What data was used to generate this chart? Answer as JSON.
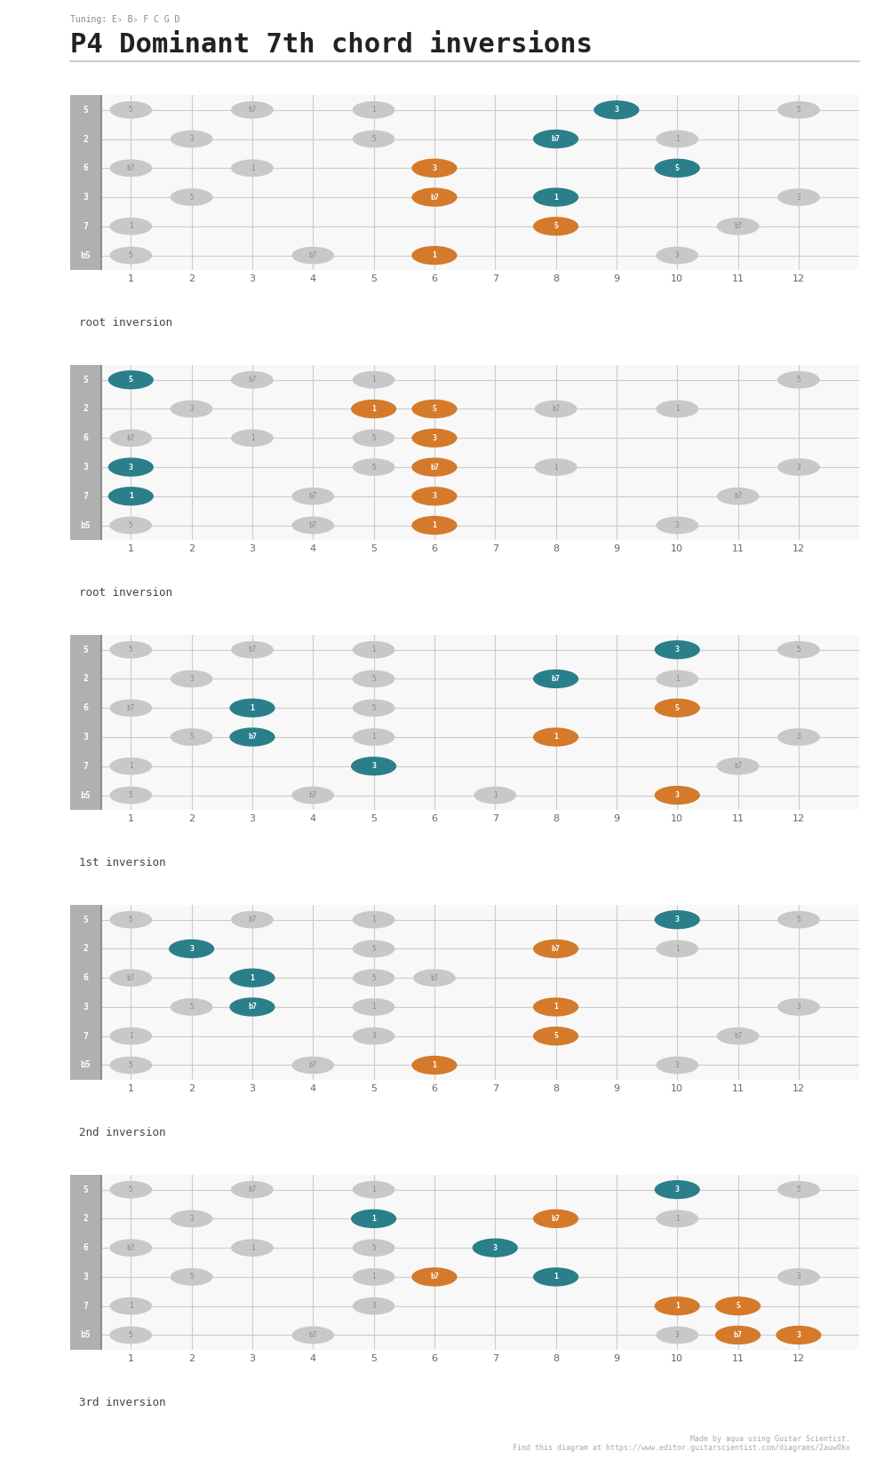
{
  "title": "P4 Dominant 7th chord inversions",
  "tuning_label": "Tuning: E♭ B♭ F C G D",
  "background_color": "#ffffff",
  "fret_color": "#cccccc",
  "string_color": "#cccccc",
  "nut_color": "#8a8a8a",
  "dot_gray": "#c8c8c8",
  "dot_teal": "#2a7f8a",
  "dot_orange": "#d47a2a",
  "dot_text_color": "#ffffff",
  "dot_gray_text": "#888888",
  "num_frets": 12,
  "num_strings": 6,
  "string_labels": [
    "5",
    "2",
    "6",
    "3",
    "7",
    "b5"
  ],
  "fret_labels": [
    "1",
    "2",
    "3",
    "4",
    "5",
    "6",
    "7",
    "8",
    "9",
    "10",
    "11",
    "12"
  ],
  "diagrams": [
    {
      "label": "root inversion",
      "highlighted": [
        {
          "string": 0,
          "fret": 9,
          "color": "teal",
          "note": "3"
        },
        {
          "string": 1,
          "fret": 8,
          "color": "teal",
          "note": "b7"
        },
        {
          "string": 2,
          "fret": 6,
          "color": "orange",
          "note": "3"
        },
        {
          "string": 2,
          "fret": 10,
          "color": "teal",
          "note": "5"
        },
        {
          "string": 3,
          "fret": 6,
          "color": "orange",
          "note": "b7"
        },
        {
          "string": 3,
          "fret": 8,
          "color": "teal",
          "note": "1"
        },
        {
          "string": 4,
          "fret": 8,
          "color": "orange",
          "note": "5"
        },
        {
          "string": 5,
          "fret": 6,
          "color": "orange",
          "note": "1"
        }
      ],
      "gray_dots": [
        {
          "string": 0,
          "fret": 1,
          "note": "5"
        },
        {
          "string": 0,
          "fret": 3,
          "note": "b7"
        },
        {
          "string": 0,
          "fret": 5,
          "note": "1"
        },
        {
          "string": 0,
          "fret": 12,
          "note": "5"
        },
        {
          "string": 1,
          "fret": 2,
          "note": "3"
        },
        {
          "string": 1,
          "fret": 5,
          "note": "5"
        },
        {
          "string": 1,
          "fret": 10,
          "note": "1"
        },
        {
          "string": 2,
          "fret": 1,
          "note": "b7"
        },
        {
          "string": 2,
          "fret": 3,
          "note": "1"
        },
        {
          "string": 3,
          "fret": 2,
          "note": "5"
        },
        {
          "string": 3,
          "fret": 12,
          "note": "3"
        },
        {
          "string": 4,
          "fret": 1,
          "note": "1"
        },
        {
          "string": 4,
          "fret": 11,
          "note": "b7"
        },
        {
          "string": 5,
          "fret": 1,
          "note": "5"
        },
        {
          "string": 5,
          "fret": 4,
          "note": "b7"
        },
        {
          "string": 5,
          "fret": 10,
          "note": "3"
        }
      ]
    },
    {
      "label": "root inversion",
      "highlighted": [
        {
          "string": 0,
          "fret": 1,
          "color": "teal",
          "note": "5"
        },
        {
          "string": 1,
          "fret": 5,
          "color": "orange",
          "note": "1"
        },
        {
          "string": 1,
          "fret": 6,
          "color": "orange",
          "note": "5"
        },
        {
          "string": 2,
          "fret": 6,
          "color": "orange",
          "note": "3"
        },
        {
          "string": 3,
          "fret": 1,
          "color": "teal",
          "note": "3"
        },
        {
          "string": 3,
          "fret": 6,
          "color": "orange",
          "note": "b7"
        },
        {
          "string": 4,
          "fret": 1,
          "color": "teal",
          "note": "1"
        },
        {
          "string": 4,
          "fret": 6,
          "color": "orange",
          "note": "3"
        },
        {
          "string": 5,
          "fret": 6,
          "color": "orange",
          "note": "1"
        }
      ],
      "gray_dots": [
        {
          "string": 0,
          "fret": 3,
          "note": "b7"
        },
        {
          "string": 0,
          "fret": 5,
          "note": "1"
        },
        {
          "string": 0,
          "fret": 12,
          "note": "5"
        },
        {
          "string": 1,
          "fret": 2,
          "note": "3"
        },
        {
          "string": 1,
          "fret": 8,
          "note": "b7"
        },
        {
          "string": 1,
          "fret": 10,
          "note": "1"
        },
        {
          "string": 2,
          "fret": 1,
          "note": "b7"
        },
        {
          "string": 2,
          "fret": 3,
          "note": "1"
        },
        {
          "string": 2,
          "fret": 5,
          "note": "5"
        },
        {
          "string": 3,
          "fret": 5,
          "note": "5"
        },
        {
          "string": 3,
          "fret": 8,
          "note": "1"
        },
        {
          "string": 3,
          "fret": 12,
          "note": "3"
        },
        {
          "string": 4,
          "fret": 4,
          "note": "b7"
        },
        {
          "string": 4,
          "fret": 11,
          "note": "b7"
        },
        {
          "string": 5,
          "fret": 1,
          "note": "5"
        },
        {
          "string": 5,
          "fret": 4,
          "note": "b7"
        },
        {
          "string": 5,
          "fret": 10,
          "note": "3"
        }
      ]
    },
    {
      "label": "1st inversion",
      "highlighted": [
        {
          "string": 0,
          "fret": 10,
          "color": "teal",
          "note": "3"
        },
        {
          "string": 1,
          "fret": 8,
          "color": "teal",
          "note": "b7"
        },
        {
          "string": 2,
          "fret": 3,
          "color": "teal",
          "note": "1"
        },
        {
          "string": 2,
          "fret": 10,
          "color": "orange",
          "note": "5"
        },
        {
          "string": 3,
          "fret": 3,
          "color": "teal",
          "note": "b7"
        },
        {
          "string": 3,
          "fret": 8,
          "color": "orange",
          "note": "1"
        },
        {
          "string": 4,
          "fret": 5,
          "color": "teal",
          "note": "3"
        },
        {
          "string": 5,
          "fret": 10,
          "color": "orange",
          "note": "3"
        }
      ],
      "gray_dots": [
        {
          "string": 0,
          "fret": 1,
          "note": "5"
        },
        {
          "string": 0,
          "fret": 3,
          "note": "b7"
        },
        {
          "string": 0,
          "fret": 5,
          "note": "1"
        },
        {
          "string": 0,
          "fret": 12,
          "note": "5"
        },
        {
          "string": 1,
          "fret": 2,
          "note": "3"
        },
        {
          "string": 1,
          "fret": 5,
          "note": "5"
        },
        {
          "string": 1,
          "fret": 10,
          "note": "1"
        },
        {
          "string": 2,
          "fret": 1,
          "note": "b7"
        },
        {
          "string": 2,
          "fret": 5,
          "note": "5"
        },
        {
          "string": 3,
          "fret": 2,
          "note": "5"
        },
        {
          "string": 3,
          "fret": 5,
          "note": "1"
        },
        {
          "string": 3,
          "fret": 12,
          "note": "3"
        },
        {
          "string": 4,
          "fret": 1,
          "note": "1"
        },
        {
          "string": 4,
          "fret": 11,
          "note": "b7"
        },
        {
          "string": 5,
          "fret": 1,
          "note": "5"
        },
        {
          "string": 5,
          "fret": 4,
          "note": "b7"
        },
        {
          "string": 5,
          "fret": 7,
          "note": "1"
        }
      ]
    },
    {
      "label": "2nd inversion",
      "highlighted": [
        {
          "string": 0,
          "fret": 10,
          "color": "teal",
          "note": "3"
        },
        {
          "string": 1,
          "fret": 2,
          "color": "teal",
          "note": "3"
        },
        {
          "string": 1,
          "fret": 8,
          "color": "orange",
          "note": "b7"
        },
        {
          "string": 2,
          "fret": 3,
          "color": "teal",
          "note": "1"
        },
        {
          "string": 3,
          "fret": 3,
          "color": "teal",
          "note": "b7"
        },
        {
          "string": 3,
          "fret": 8,
          "color": "orange",
          "note": "1"
        },
        {
          "string": 4,
          "fret": 8,
          "color": "orange",
          "note": "5"
        },
        {
          "string": 5,
          "fret": 6,
          "color": "orange",
          "note": "1"
        }
      ],
      "gray_dots": [
        {
          "string": 0,
          "fret": 1,
          "note": "5"
        },
        {
          "string": 0,
          "fret": 3,
          "note": "b7"
        },
        {
          "string": 0,
          "fret": 5,
          "note": "1"
        },
        {
          "string": 0,
          "fret": 12,
          "note": "5"
        },
        {
          "string": 1,
          "fret": 5,
          "note": "5"
        },
        {
          "string": 1,
          "fret": 10,
          "note": "1"
        },
        {
          "string": 2,
          "fret": 1,
          "note": "b7"
        },
        {
          "string": 2,
          "fret": 5,
          "note": "5"
        },
        {
          "string": 2,
          "fret": 6,
          "note": "b7"
        },
        {
          "string": 3,
          "fret": 2,
          "note": "5"
        },
        {
          "string": 3,
          "fret": 5,
          "note": "1"
        },
        {
          "string": 3,
          "fret": 12,
          "note": "3"
        },
        {
          "string": 4,
          "fret": 1,
          "note": "1"
        },
        {
          "string": 4,
          "fret": 5,
          "note": "3"
        },
        {
          "string": 4,
          "fret": 11,
          "note": "b7"
        },
        {
          "string": 5,
          "fret": 1,
          "note": "5"
        },
        {
          "string": 5,
          "fret": 4,
          "note": "b7"
        },
        {
          "string": 5,
          "fret": 10,
          "note": "3"
        }
      ]
    },
    {
      "label": "3rd inversion",
      "highlighted": [
        {
          "string": 0,
          "fret": 10,
          "color": "teal",
          "note": "3"
        },
        {
          "string": 1,
          "fret": 5,
          "color": "teal",
          "note": "1"
        },
        {
          "string": 1,
          "fret": 8,
          "color": "orange",
          "note": "b7"
        },
        {
          "string": 2,
          "fret": 7,
          "color": "teal",
          "note": "3"
        },
        {
          "string": 3,
          "fret": 6,
          "color": "orange",
          "note": "b7"
        },
        {
          "string": 3,
          "fret": 8,
          "color": "teal",
          "note": "1"
        },
        {
          "string": 4,
          "fret": 10,
          "color": "orange",
          "note": "1"
        },
        {
          "string": 4,
          "fret": 11,
          "color": "orange",
          "note": "5"
        },
        {
          "string": 5,
          "fret": 12,
          "color": "orange",
          "note": "3"
        },
        {
          "string": 5,
          "fret": 11,
          "color": "orange",
          "note": "b7"
        }
      ],
      "gray_dots": [
        {
          "string": 0,
          "fret": 1,
          "note": "5"
        },
        {
          "string": 0,
          "fret": 3,
          "note": "b7"
        },
        {
          "string": 0,
          "fret": 5,
          "note": "1"
        },
        {
          "string": 0,
          "fret": 12,
          "note": "5"
        },
        {
          "string": 1,
          "fret": 2,
          "note": "3"
        },
        {
          "string": 1,
          "fret": 10,
          "note": "1"
        },
        {
          "string": 2,
          "fret": 1,
          "note": "b7"
        },
        {
          "string": 2,
          "fret": 3,
          "note": "1"
        },
        {
          "string": 2,
          "fret": 5,
          "note": "5"
        },
        {
          "string": 3,
          "fret": 2,
          "note": "5"
        },
        {
          "string": 3,
          "fret": 5,
          "note": "1"
        },
        {
          "string": 3,
          "fret": 12,
          "note": "3"
        },
        {
          "string": 4,
          "fret": 1,
          "note": "1"
        },
        {
          "string": 4,
          "fret": 5,
          "note": "3"
        },
        {
          "string": 5,
          "fret": 1,
          "note": "5"
        },
        {
          "string": 5,
          "fret": 4,
          "note": "b7"
        },
        {
          "string": 5,
          "fret": 10,
          "note": "3"
        }
      ]
    }
  ],
  "footer": "Made by aqua using Guitar Scientist.\nFind this diagram at https://www.editor.guitarscientist.com/diagrams/2auw0kx"
}
